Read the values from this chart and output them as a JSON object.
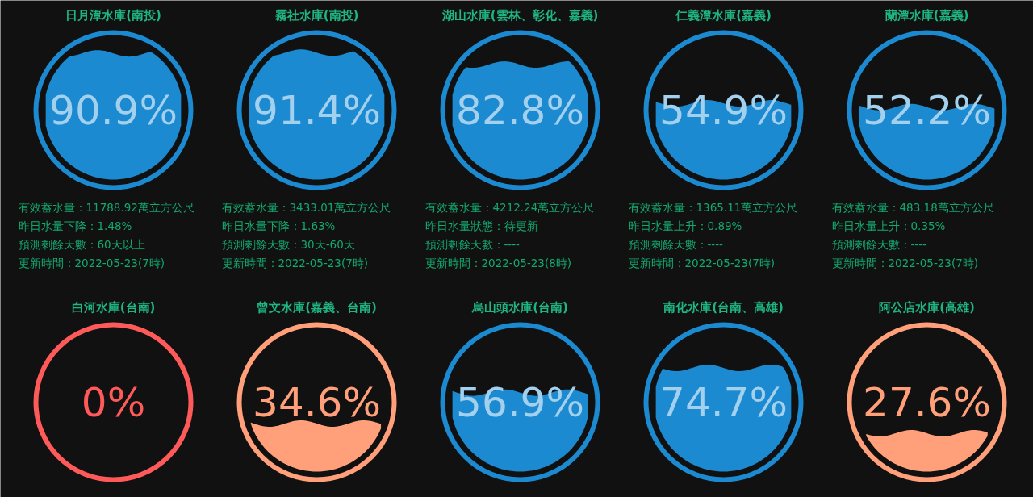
{
  "chart_data": [
    {
      "type": "other",
      "title": "日月潭水庫(南投)",
      "values": [
        90.9
      ],
      "value_labels": [
        "90.9%"
      ],
      "color": "#1b8ad1",
      "annotations": [
        "有效蓄水量：11788.92萬立方公尺",
        "昨日水量下降：1.48%",
        "預測剩餘天數：60天以上",
        "更新時間：2022-05-23(7時)"
      ]
    },
    {
      "type": "other",
      "title": "霧社水庫(南投)",
      "values": [
        91.4
      ],
      "value_labels": [
        "91.4%"
      ],
      "color": "#1b8ad1",
      "annotations": [
        "有效蓄水量：3433.01萬立方公尺",
        "昨日水量下降：1.63%",
        "預測剩餘天數：30天-60天",
        "更新時間：2022-05-23(7時)"
      ]
    },
    {
      "type": "other",
      "title": "湖山水庫(雲林、彰化、嘉義)",
      "values": [
        82.8
      ],
      "value_labels": [
        "82.8%"
      ],
      "color": "#1b8ad1",
      "annotations": [
        "有效蓄水量：4212.24萬立方公尺",
        "昨日水量狀態：待更新",
        "預測剩餘天數：----",
        "更新時間：2022-05-23(8時)"
      ]
    },
    {
      "type": "other",
      "title": "仁義潭水庫(嘉義)",
      "values": [
        54.9
      ],
      "value_labels": [
        "54.9%"
      ],
      "color": "#1b8ad1",
      "annotations": [
        "有效蓄水量：1365.11萬立方公尺",
        "昨日水量上升：0.89%",
        "預測剩餘天數：----",
        "更新時間：2022-05-23(7時)"
      ]
    },
    {
      "type": "other",
      "title": "蘭潭水庫(嘉義)",
      "values": [
        52.2
      ],
      "value_labels": [
        "52.2%"
      ],
      "color": "#1b8ad1",
      "annotations": [
        "有效蓄水量：483.18萬立方公尺",
        "昨日水量上升：0.35%",
        "預測剩餘天數：----",
        "更新時間：2022-05-23(7時)"
      ]
    },
    {
      "type": "other",
      "title": "白河水庫(台南)",
      "values": [
        0
      ],
      "value_labels": [
        "0%"
      ],
      "color": "#ff5a5a"
    },
    {
      "type": "other",
      "title": "曾文水庫(嘉義、台南)",
      "values": [
        34.6
      ],
      "value_labels": [
        "34.6%"
      ],
      "color": "#ffa07a"
    },
    {
      "type": "other",
      "title": "烏山頭水庫(台南)",
      "values": [
        56.9
      ],
      "value_labels": [
        "56.9%"
      ],
      "color": "#1b8ad1"
    },
    {
      "type": "other",
      "title": "南化水庫(台南、高雄)",
      "values": [
        74.7
      ],
      "value_labels": [
        "74.7%"
      ],
      "color": "#1b8ad1"
    },
    {
      "type": "other",
      "title": "阿公店水庫(高雄)",
      "values": [
        27.6
      ],
      "value_labels": [
        "27.6%"
      ],
      "color": "#ffa07a"
    }
  ]
}
